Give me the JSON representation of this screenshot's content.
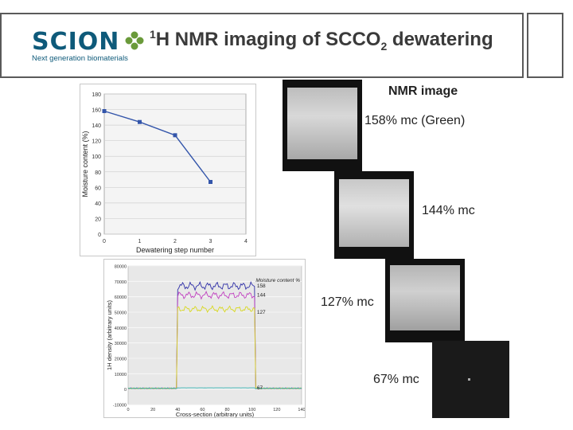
{
  "logo": {
    "word": "SCION",
    "tagline": "Next generation biomaterials",
    "clover_color": "#6a9a3a",
    "brand_color": "#0e5a7a"
  },
  "title": {
    "pre": "1",
    "h": "H NMR imaging of SCCO",
    "sub": "2",
    "post": " dewatering"
  },
  "nmr": {
    "heading": "NMR image",
    "images": [
      {
        "label": "158% mc (Green)",
        "brightness": 0.8
      },
      {
        "label": "144% mc",
        "brightness": 0.85
      },
      {
        "label": "127% mc",
        "brightness": 0.75
      },
      {
        "label": "67% mc",
        "brightness": 0.1
      }
    ]
  },
  "chart_data": [
    {
      "type": "line",
      "xlabel": "Dewatering step number",
      "ylabel": "Moisture content (%)",
      "x": [
        0,
        1,
        2,
        3
      ],
      "series": [
        {
          "values": [
            158,
            144,
            127,
            67
          ]
        }
      ],
      "xlim": [
        0,
        4
      ],
      "ylim": [
        0,
        180
      ],
      "xticks": [
        "0",
        "1",
        "2",
        "3",
        "4"
      ],
      "yticks": [
        "0",
        "20",
        "40",
        "60",
        "80",
        "100",
        "120",
        "140",
        "160",
        "180"
      ],
      "grid": true,
      "colors": {
        "line": "#3355aa"
      }
    },
    {
      "type": "line",
      "xlabel": "Cross-section (arbitrary units)",
      "ylabel": "1H density (arbitrary units)",
      "legend_title": "Moisture content %",
      "xlim": [
        0,
        140
      ],
      "ylim": [
        -10000,
        80000
      ],
      "xticks": [
        "0",
        "20",
        "40",
        "60",
        "80",
        "100",
        "120",
        "140"
      ],
      "yticks": [
        "-10000",
        "0",
        "10000",
        "20000",
        "30000",
        "40000",
        "50000",
        "60000",
        "70000",
        "80000"
      ],
      "series": [
        {
          "name": "158",
          "color": "#3030a8",
          "plateau": 67000
        },
        {
          "name": "144",
          "color": "#c040c0",
          "plateau": 61000
        },
        {
          "name": "127",
          "color": "#d8d820",
          "plateau": 52000
        },
        {
          "name": "67",
          "color": "#30b0b0",
          "plateau": 800
        }
      ],
      "edges": [
        40,
        102
      ]
    }
  ]
}
